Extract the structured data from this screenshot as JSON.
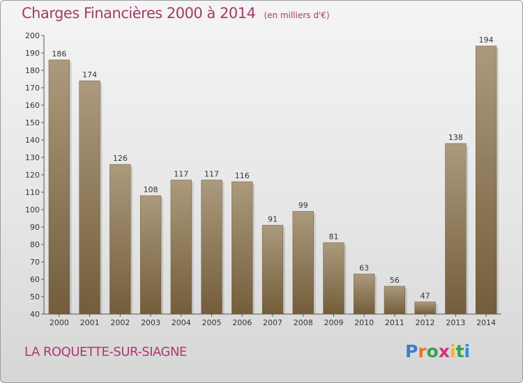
{
  "header": {
    "title": "Charges Financières 2000 à 2014",
    "subtitle": "(en milliers d'€)"
  },
  "footer": {
    "commune": "LA ROQUETTE-SUR-SIAGNE",
    "logo": "Proxiti"
  },
  "colors": {
    "title": "#a23a6a",
    "bar_light": "#a89878",
    "bar_dark": "#7a6340"
  },
  "chart_data": {
    "type": "bar",
    "title": "Charges Financières 2000 à 2014",
    "subtitle": "(en milliers d'€)",
    "categories": [
      "2000",
      "2001",
      "2002",
      "2003",
      "2004",
      "2005",
      "2006",
      "2007",
      "2008",
      "2009",
      "2010",
      "2011",
      "2012",
      "2013",
      "2014"
    ],
    "values": [
      186,
      174,
      126,
      108,
      117,
      117,
      116,
      91,
      99,
      81,
      63,
      56,
      47,
      138,
      194
    ],
    "ylim": [
      40,
      200
    ],
    "yticks": [
      40,
      50,
      60,
      70,
      80,
      90,
      100,
      110,
      120,
      130,
      140,
      150,
      160,
      170,
      180,
      190,
      200
    ],
    "grid": false,
    "legend": "none"
  }
}
